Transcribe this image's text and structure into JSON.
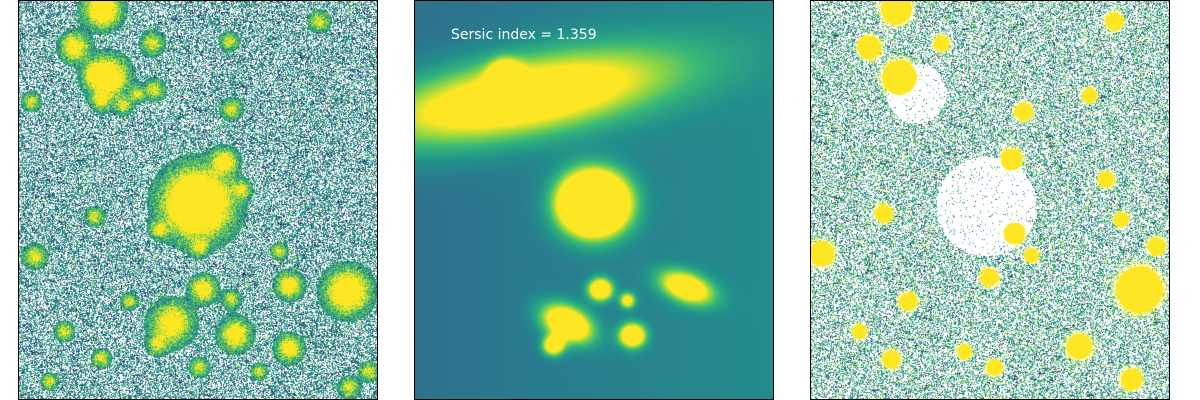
{
  "figure": {
    "panels": [
      {
        "id": "data-image",
        "kind": "observed galaxy field image"
      },
      {
        "id": "model-image",
        "kind": "fitted model image"
      },
      {
        "id": "residual-image",
        "kind": "residual image"
      }
    ],
    "model_annotation": "Sersic index = 1.359",
    "colormap": [
      "#440154",
      "#31688e",
      "#21918c",
      "#35b779",
      "#8fd744",
      "#fde725"
    ],
    "masked_color": "#ffffff"
  }
}
